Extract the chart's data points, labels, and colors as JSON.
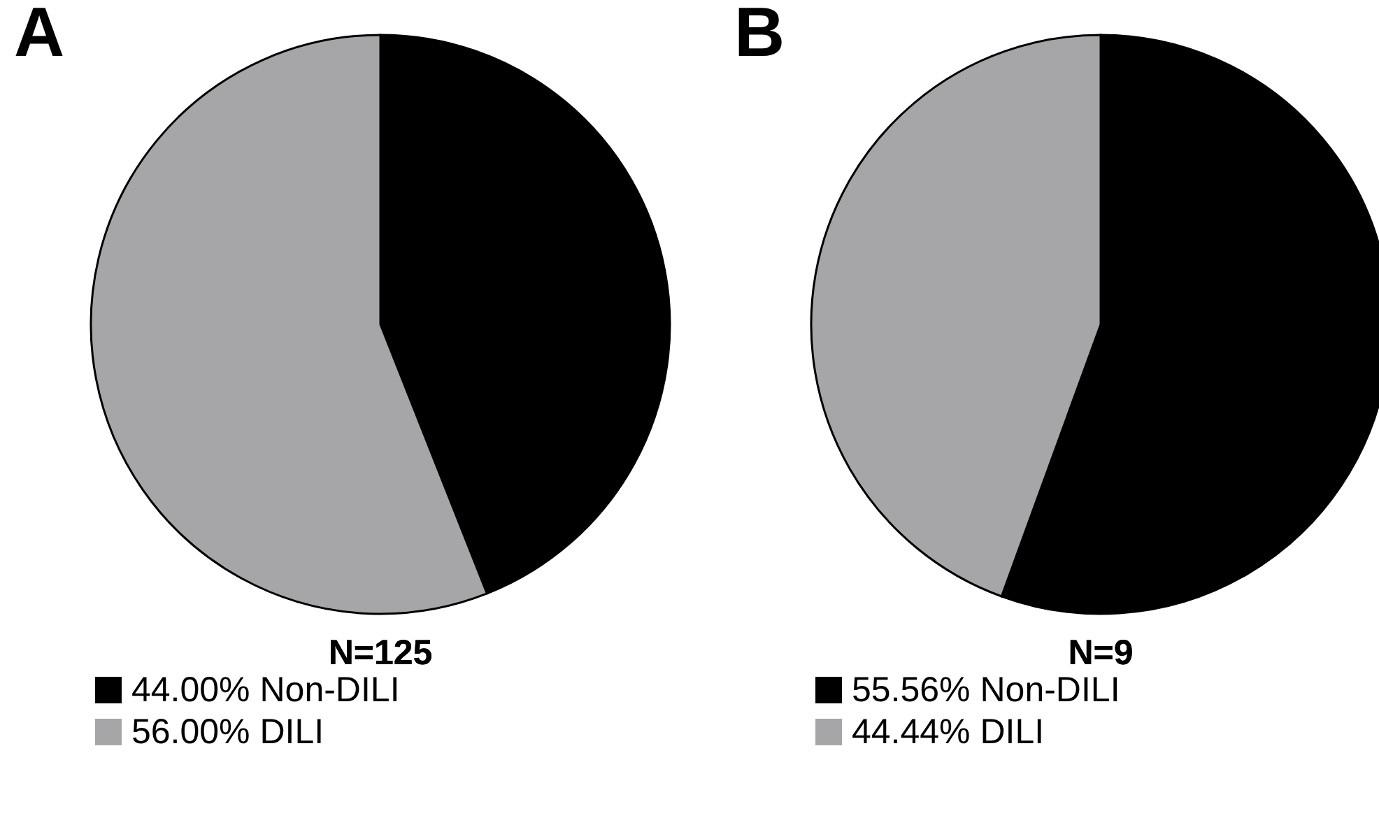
{
  "chart_data": [
    {
      "type": "pie",
      "title": "A",
      "categories": [
        "Non-DILI",
        "DILI"
      ],
      "values": [
        44.0,
        56.0
      ],
      "value_labels": [
        "44.00%",
        "56.00%"
      ],
      "colors": [
        "#000000",
        "#a6a6a8"
      ],
      "annotations": [
        "N=125"
      ],
      "legend": "bottom"
    },
    {
      "type": "pie",
      "title": "B",
      "categories": [
        "Non-DILI",
        "DILI"
      ],
      "values": [
        55.56,
        44.44
      ],
      "value_labels": [
        "55.56%",
        "44.44%"
      ],
      "colors": [
        "#000000",
        "#a6a6a8"
      ],
      "annotations": [
        "N=9"
      ],
      "legend": "bottom"
    }
  ]
}
